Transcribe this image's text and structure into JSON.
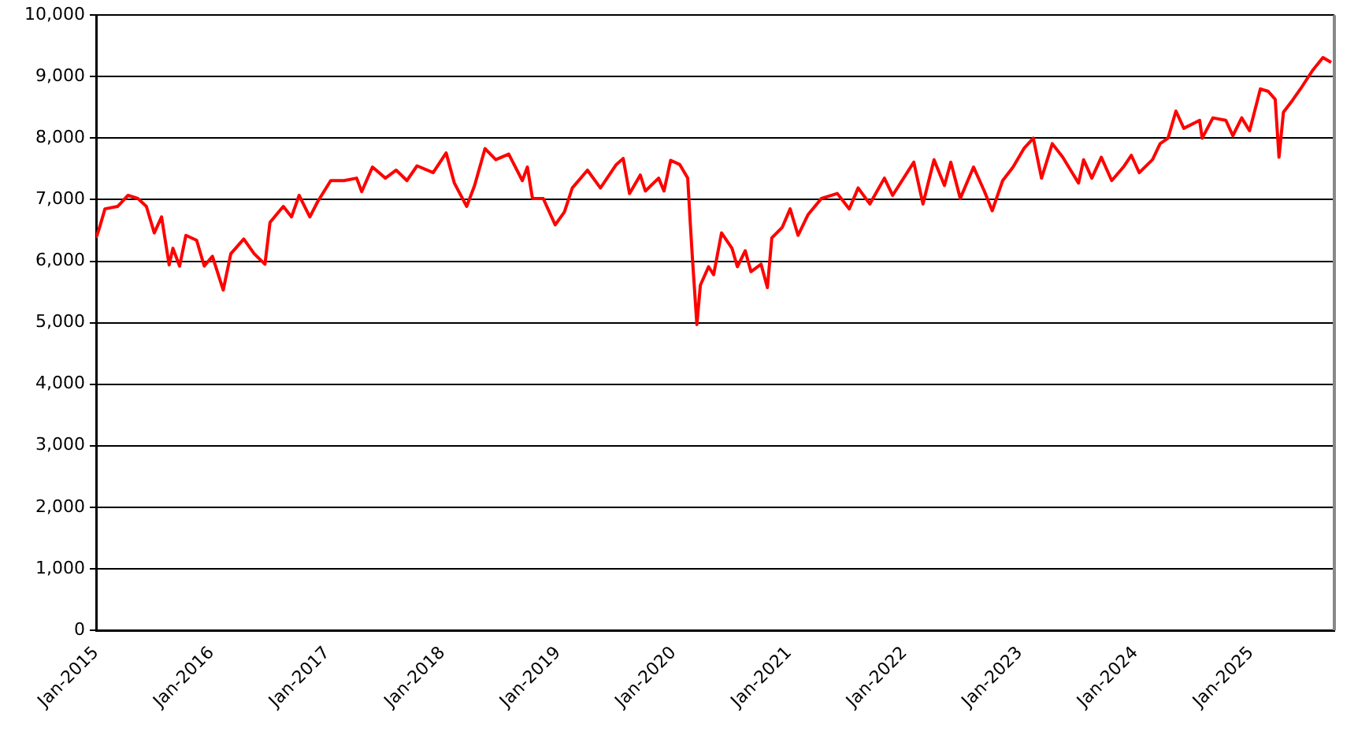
{
  "chart_data": {
    "type": "line",
    "x": [
      "2015-01-01",
      "2015-01-12",
      "2015-01-29",
      "2015-03-10",
      "2015-04-12",
      "2015-05-13",
      "2015-06-09",
      "2015-07-04",
      "2015-07-27",
      "2015-08-20",
      "2015-09-01",
      "2015-09-22",
      "2015-10-12",
      "2015-11-15",
      "2015-12-09",
      "2016-01-04",
      "2016-02-07",
      "2016-03-02",
      "2016-04-12",
      "2016-05-15",
      "2016-06-18",
      "2016-07-04",
      "2016-08-15",
      "2016-09-10",
      "2016-10-04",
      "2016-11-07",
      "2016-12-02",
      "2017-01-12",
      "2017-02-23",
      "2017-04-04",
      "2017-04-20",
      "2017-05-24",
      "2017-07-04",
      "2017-08-07",
      "2017-09-10",
      "2017-10-12",
      "2017-12-02",
      "2018-01-12",
      "2018-02-07",
      "2018-03-18",
      "2018-04-12",
      "2018-05-15",
      "2018-06-18",
      "2018-07-29",
      "2018-09-10",
      "2018-09-26",
      "2018-10-12",
      "2018-11-15",
      "2018-12-23",
      "2019-01-21",
      "2019-02-15",
      "2019-04-04",
      "2019-05-15",
      "2019-07-04",
      "2019-07-26",
      "2019-08-15",
      "2019-09-18",
      "2019-10-04",
      "2019-11-15",
      "2019-12-02",
      "2019-12-23",
      "2020-01-21",
      "2020-02-15",
      "2020-02-23",
      "2020-03-01",
      "2020-03-15",
      "2020-03-26",
      "2020-04-21",
      "2020-05-07",
      "2020-06-01",
      "2020-07-04",
      "2020-07-21",
      "2020-08-15",
      "2020-09-02",
      "2020-10-04",
      "2020-10-24",
      "2020-11-07",
      "2020-12-10",
      "2021-01-04",
      "2021-01-29",
      "2021-03-02",
      "2021-04-13",
      "2021-06-02",
      "2021-07-10",
      "2021-08-07",
      "2021-09-13",
      "2021-10-29",
      "2021-11-24",
      "2022-01-30",
      "2022-02-28",
      "2022-04-04",
      "2022-05-07",
      "2022-05-27",
      "2022-06-26",
      "2022-08-07",
      "2022-09-10",
      "2022-10-05",
      "2022-11-07",
      "2022-12-10",
      "2023-01-13",
      "2023-02-12",
      "2023-03-10",
      "2023-04-13",
      "2023-05-16",
      "2023-06-10",
      "2023-07-05",
      "2023-07-21",
      "2023-08-16",
      "2023-09-15",
      "2023-10-18",
      "2023-11-24",
      "2023-12-19",
      "2024-01-13",
      "2024-02-24",
      "2024-03-19",
      "2024-04-13",
      "2024-05-08",
      "2024-06-02",
      "2024-07-22",
      "2024-07-30",
      "2024-09-02",
      "2024-10-13",
      "2024-11-04",
      "2024-12-02",
      "2024-12-27",
      "2025-01-30",
      "2025-02-24",
      "2025-03-18",
      "2025-03-30",
      "2025-04-13",
      "2025-05-08",
      "2025-06-11",
      "2025-07-14",
      "2025-08-16",
      "2025-09-11"
    ],
    "series": [
      {
        "color": "#ff0000",
        "values": [
          6380,
          6550,
          6850,
          6890,
          7070,
          7020,
          6890,
          6460,
          6720,
          5940,
          6210,
          5920,
          6420,
          6340,
          5920,
          6080,
          5530,
          6120,
          6360,
          6120,
          5950,
          6630,
          6890,
          6720,
          7070,
          6720,
          6970,
          7310,
          7310,
          7350,
          7130,
          7530,
          7350,
          7480,
          7310,
          7550,
          7440,
          7760,
          7270,
          6890,
          7230,
          7830,
          7650,
          7740,
          7310,
          7530,
          7020,
          7020,
          6590,
          6800,
          7190,
          7480,
          7190,
          7570,
          7670,
          7100,
          7400,
          7140,
          7350,
          7140,
          7640,
          7570,
          7350,
          6630,
          6040,
          4970,
          5610,
          5910,
          5780,
          6460,
          6210,
          5910,
          6170,
          5830,
          5950,
          5570,
          6380,
          6550,
          6850,
          6420,
          6760,
          7020,
          7100,
          6850,
          7190,
          6930,
          7350,
          7070,
          7610,
          6930,
          7650,
          7230,
          7610,
          7020,
          7530,
          7140,
          6820,
          7310,
          7530,
          7830,
          8000,
          7350,
          7910,
          7690,
          7480,
          7270,
          7650,
          7350,
          7690,
          7310,
          7530,
          7720,
          7440,
          7650,
          7910,
          8000,
          8440,
          8160,
          8290,
          8000,
          8330,
          8290,
          8040,
          8330,
          8120,
          8800,
          8760,
          8630,
          7690,
          8420,
          8590,
          8840,
          9100,
          9310,
          9230
        ]
      }
    ],
    "xlim": [
      "2015-01-01",
      "2025-09-21"
    ],
    "xticks": [
      {
        "value": "2015-01-01",
        "label": "Jan-2015"
      },
      {
        "value": "2016-01-01",
        "label": "Jan-2016"
      },
      {
        "value": "2017-01-01",
        "label": "Jan-2017"
      },
      {
        "value": "2018-01-01",
        "label": "Jan-2018"
      },
      {
        "value": "2019-01-01",
        "label": "Jan-2019"
      },
      {
        "value": "2020-01-01",
        "label": "Jan-2020"
      },
      {
        "value": "2021-01-01",
        "label": "Jan-2021"
      },
      {
        "value": "2022-01-01",
        "label": "Jan-2022"
      },
      {
        "value": "2023-01-01",
        "label": "Jan-2023"
      },
      {
        "value": "2024-01-01",
        "label": "Jan-2024"
      },
      {
        "value": "2025-01-01",
        "label": "Jan-2025"
      }
    ],
    "ylim": [
      0,
      10000
    ],
    "yticks": [
      0,
      {
        "value": 1000,
        "label": "1,000"
      },
      {
        "value": 2000,
        "label": "2,000"
      },
      {
        "value": 3000,
        "label": "3,000"
      },
      {
        "value": 4000,
        "label": "4,000"
      },
      {
        "value": 5000,
        "label": "5,000"
      },
      {
        "value": 6000,
        "label": "6,000"
      },
      {
        "value": 7000,
        "label": "7,000"
      },
      {
        "value": 8000,
        "label": "8,000"
      },
      {
        "value": 9000,
        "label": "9,000"
      },
      {
        "value": 10000,
        "label": "10,000"
      }
    ],
    "grid": "y",
    "legend": false,
    "marker": "none",
    "line_style": "solid"
  }
}
